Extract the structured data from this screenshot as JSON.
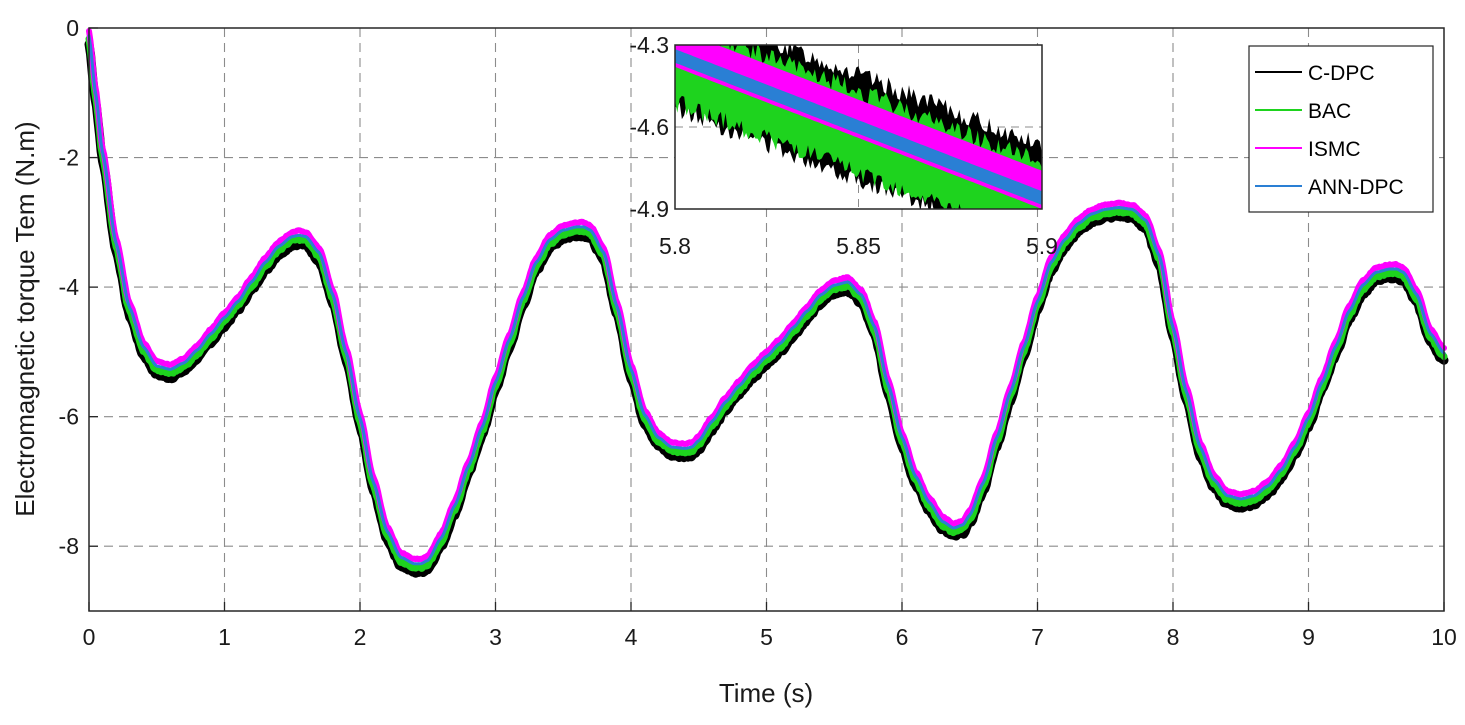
{
  "chart_data": {
    "type": "line",
    "title": "",
    "xlabel": "Time (s)",
    "ylabel": "Electromagnetic torque Tem (N.m)",
    "xlim": [
      0,
      10
    ],
    "ylim": [
      -9,
      0
    ],
    "xticks": [
      "0",
      "1",
      "2",
      "3",
      "4",
      "5",
      "6",
      "7",
      "8",
      "9",
      "10"
    ],
    "yticks": [
      "0",
      "-2",
      "-4",
      "-6",
      "-8"
    ],
    "grid": true,
    "legend_position": "top-right",
    "reference_curve": {
      "x": [
        0,
        0.05,
        0.1,
        0.2,
        0.3,
        0.4,
        0.5,
        0.6,
        0.7,
        0.8,
        0.9,
        1.0,
        1.1,
        1.2,
        1.3,
        1.4,
        1.5,
        1.55,
        1.6,
        1.7,
        1.8,
        1.9,
        2.0,
        2.1,
        2.2,
        2.3,
        2.4,
        2.45,
        2.5,
        2.6,
        2.7,
        2.8,
        2.9,
        3.0,
        3.1,
        3.2,
        3.3,
        3.4,
        3.5,
        3.6,
        3.65,
        3.7,
        3.8,
        3.9,
        4.0,
        4.1,
        4.2,
        4.3,
        4.4,
        4.45,
        4.5,
        4.6,
        4.7,
        4.8,
        4.9,
        5.0,
        5.1,
        5.2,
        5.3,
        5.4,
        5.5,
        5.6,
        5.7,
        5.8,
        5.9,
        6.0,
        6.1,
        6.2,
        6.3,
        6.38,
        6.45,
        6.5,
        6.6,
        6.7,
        6.8,
        6.9,
        7.0,
        7.1,
        7.2,
        7.3,
        7.4,
        7.5,
        7.6,
        7.7,
        7.8,
        7.9,
        8.0,
        8.1,
        8.2,
        8.3,
        8.4,
        8.5,
        8.6,
        8.7,
        8.8,
        8.9,
        9.0,
        9.1,
        9.2,
        9.3,
        9.4,
        9.5,
        9.6,
        9.65,
        9.7,
        9.8,
        9.9,
        10.0
      ],
      "y": [
        -0.1,
        -1.0,
        -1.9,
        -3.3,
        -4.3,
        -4.9,
        -5.2,
        -5.25,
        -5.15,
        -4.95,
        -4.7,
        -4.45,
        -4.2,
        -3.9,
        -3.6,
        -3.35,
        -3.2,
        -3.18,
        -3.2,
        -3.45,
        -4.1,
        -5.0,
        -6.0,
        -7.0,
        -7.75,
        -8.15,
        -8.25,
        -8.25,
        -8.2,
        -7.85,
        -7.35,
        -6.75,
        -6.15,
        -5.45,
        -4.8,
        -4.15,
        -3.6,
        -3.25,
        -3.1,
        -3.05,
        -3.05,
        -3.1,
        -3.45,
        -4.3,
        -5.25,
        -5.95,
        -6.3,
        -6.45,
        -6.47,
        -6.45,
        -6.35,
        -6.05,
        -5.75,
        -5.5,
        -5.25,
        -5.05,
        -4.85,
        -4.6,
        -4.35,
        -4.1,
        -3.95,
        -3.9,
        -4.1,
        -4.6,
        -5.5,
        -6.3,
        -6.9,
        -7.3,
        -7.6,
        -7.7,
        -7.65,
        -7.5,
        -7.0,
        -6.3,
        -5.6,
        -4.9,
        -4.2,
        -3.6,
        -3.25,
        -3.0,
        -2.85,
        -2.78,
        -2.75,
        -2.78,
        -2.95,
        -3.5,
        -4.6,
        -5.6,
        -6.45,
        -6.95,
        -7.2,
        -7.25,
        -7.2,
        -7.05,
        -6.8,
        -6.45,
        -6.0,
        -5.45,
        -4.9,
        -4.35,
        -3.95,
        -3.75,
        -3.7,
        -3.7,
        -3.75,
        -4.1,
        -4.7,
        -5.0
      ]
    },
    "series": [
      {
        "name": "C-DPC",
        "color": "#000000",
        "offset": -0.15,
        "width": 9,
        "noise": 0.05
      },
      {
        "name": "BAC",
        "color": "#1ed31e",
        "offset": -0.08,
        "width": 7,
        "noise": 0.04
      },
      {
        "name": "ISMC",
        "color": "#ff00ff",
        "offset": 0.05,
        "width": 6,
        "noise": 0.02
      },
      {
        "name": "ANN-DPC",
        "color": "#2a7fd4",
        "offset": -0.02,
        "width": 3,
        "noise": 0.0
      }
    ],
    "inset": {
      "xlim": [
        5.8,
        5.9
      ],
      "ylim": [
        -4.9,
        -4.3
      ],
      "xticks": [
        "5.8",
        "5.85",
        "5.9"
      ],
      "yticks": [
        "-4.3",
        "-4.6",
        "-4.9"
      ],
      "bands": [
        {
          "name": "C-DPC",
          "color": "#000000",
          "y_start": -4.34,
          "y_end": -4.86,
          "half_width": 0.19
        },
        {
          "name": "BAC",
          "color": "#1ed31e",
          "y_start": -4.36,
          "y_end": -4.88,
          "half_width": 0.15
        },
        {
          "name": "ISMC",
          "color": "#ff00ff",
          "y_start": -4.31,
          "y_end": -4.83,
          "half_width": 0.07
        },
        {
          "name": "ANN-DPC",
          "color": "#2a7fd4",
          "y_start": -4.34,
          "y_end": -4.86,
          "half_width": 0.025
        }
      ]
    }
  }
}
